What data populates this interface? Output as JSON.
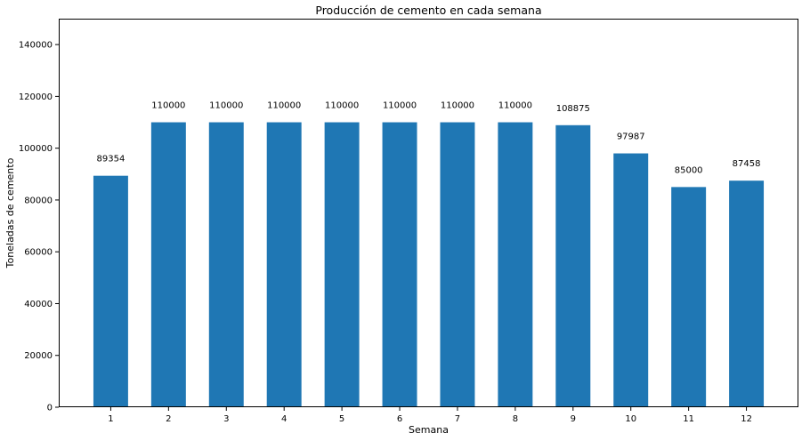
{
  "chart_data": {
    "type": "bar",
    "title": "Producción de cemento en cada semana",
    "xlabel": "Semana",
    "ylabel": "Toneladas de cemento",
    "categories": [
      "1",
      "2",
      "3",
      "4",
      "5",
      "6",
      "7",
      "8",
      "9",
      "10",
      "11",
      "12"
    ],
    "values": [
      89354,
      110000,
      110000,
      110000,
      110000,
      110000,
      110000,
      110000,
      108875,
      97987,
      85000,
      87458
    ],
    "data_labels": [
      "89354",
      "110000",
      "110000",
      "110000",
      "110000",
      "110000",
      "110000",
      "110000",
      "108875",
      "97987",
      "85000",
      "87458"
    ],
    "ylim": [
      0,
      150000
    ],
    "yticks": [
      0,
      20000,
      40000,
      60000,
      80000,
      100000,
      120000,
      140000
    ],
    "ytick_labels": [
      "0",
      "20000",
      "40000",
      "60000",
      "80000",
      "100000",
      "120000",
      "140000"
    ],
    "grid": false,
    "legend": "none",
    "bar_color": "#1f77b4"
  }
}
